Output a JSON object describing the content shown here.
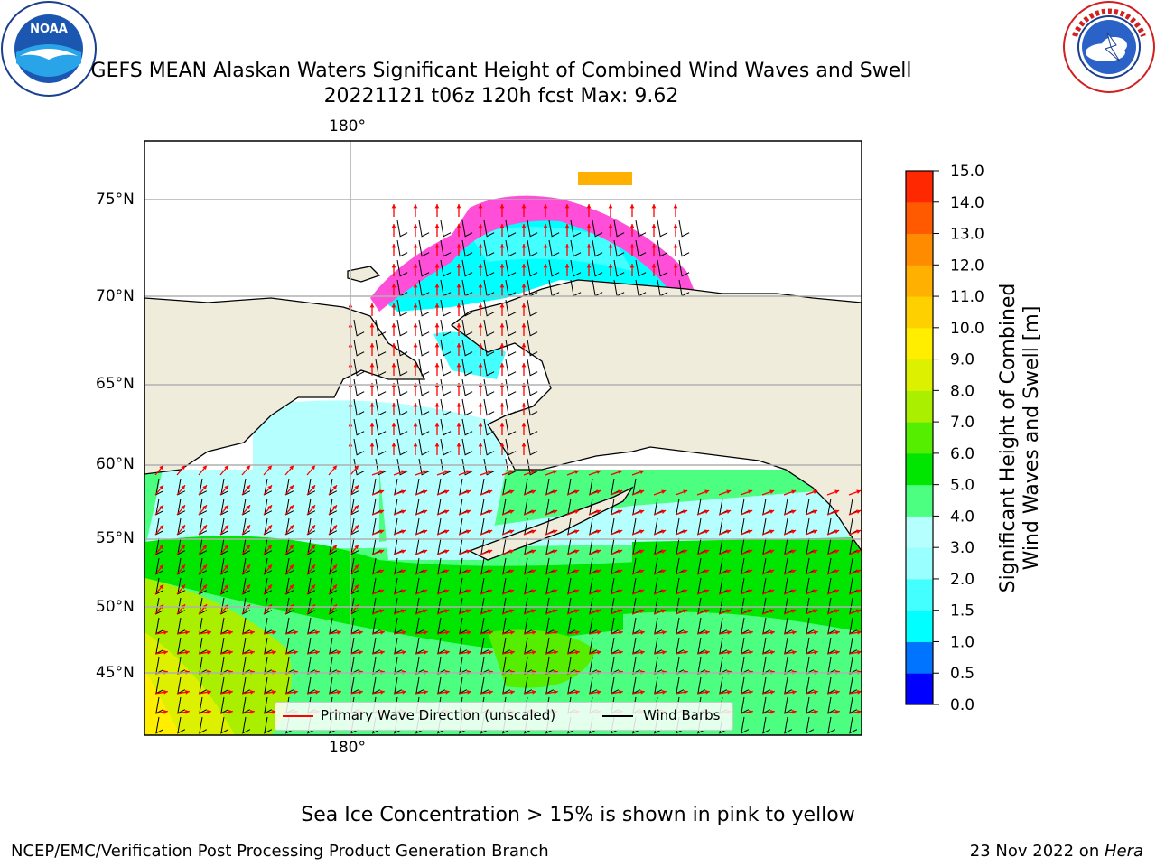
{
  "header": {
    "title_line1": "GEFS MEAN Alaskan Waters Significant Height of Combined Wind Waves and Swell",
    "title_line2": "20221121 t06z 120h fcst   Max: 9.62"
  },
  "logos": {
    "left": {
      "name": "noaa-logo",
      "text": "NOAA",
      "ring_text": "NATIONAL OCEANIC AND ATMOSPHERIC ADMINISTRATION · U.S. DEPARTMENT OF COMMERCE"
    },
    "right": {
      "name": "nws-logo",
      "ring_text": "NATIONAL WEATHER SERVICE"
    }
  },
  "map": {
    "lat_labels": [
      "75°N",
      "70°N",
      "65°N",
      "60°N",
      "55°N",
      "50°N",
      "45°N"
    ],
    "lon_label_top": "180°",
    "lon_label_bottom": "180°",
    "colors": {
      "land": "#efecdc",
      "coast": "#000000",
      "grid": "#b0b0b0"
    }
  },
  "legend": {
    "wave_direction": "Primary Wave Direction (unscaled)",
    "wind_barbs": "Wind Barbs",
    "wave_color": "#ff0000",
    "barb_color": "#000000"
  },
  "colorbar": {
    "label_line1": "Significant Height of Combined",
    "label_line2": "Wind Waves and Swell [m]",
    "ticks": [
      "0.0",
      "0.5",
      "1.0",
      "1.5",
      "2.0",
      "3.0",
      "4.0",
      "5.0",
      "6.0",
      "7.0",
      "8.0",
      "9.0",
      "10.0",
      "11.0",
      "12.0",
      "13.0",
      "14.0",
      "15.0"
    ],
    "colors": [
      "#0000ff",
      "#0073ff",
      "#00ffff",
      "#44ffff",
      "#99ffff",
      "#b5ffff",
      "#4cff80",
      "#00e600",
      "#55ee00",
      "#aaee00",
      "#ddf000",
      "#ffee00",
      "#ffd000",
      "#ffb000",
      "#ff8c00",
      "#ff5a00",
      "#ff2800",
      "#ff0000"
    ]
  },
  "footer": {
    "note": "Sea Ice Concentration > 15% is shown in pink to yellow",
    "left": "NCEP/EMC/Verification Post Processing Product Generation Branch",
    "right_prefix": "23 Nov 2022 on ",
    "right_host": "Hera"
  }
}
